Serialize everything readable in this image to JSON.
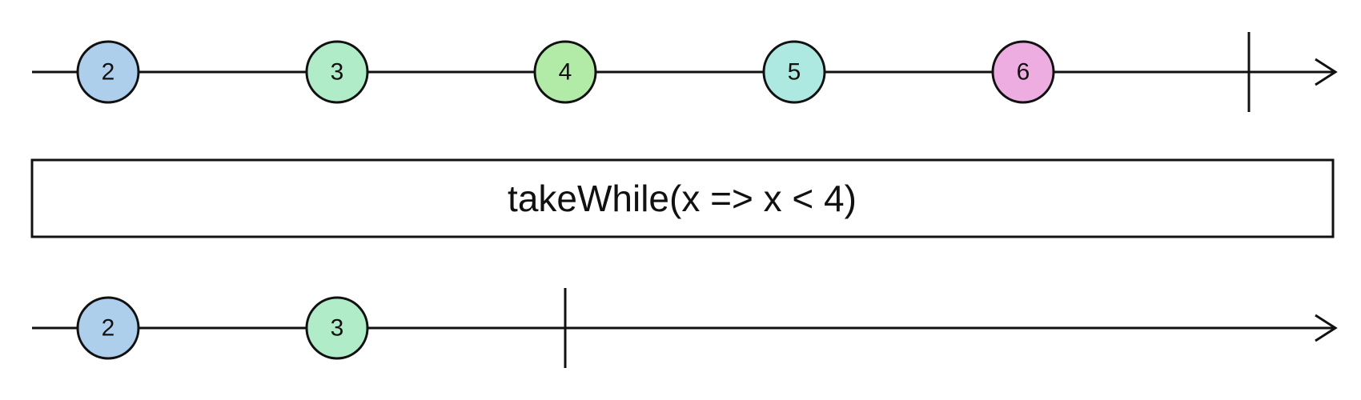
{
  "operator": {
    "label": "takeWhile(x => x < 4)"
  },
  "source": {
    "marbles": [
      {
        "value": "2",
        "color": "#aecfec"
      },
      {
        "value": "3",
        "color": "#b0ecc8"
      },
      {
        "value": "4",
        "color": "#b2eaa8"
      },
      {
        "value": "5",
        "color": "#ade9e0"
      },
      {
        "value": "6",
        "color": "#eeade0"
      }
    ],
    "completes": true
  },
  "result": {
    "marbles": [
      {
        "value": "2",
        "color": "#aecfec"
      },
      {
        "value": "3",
        "color": "#b0ecc8"
      }
    ],
    "completes": true
  },
  "colors": {
    "stroke": "#111111",
    "background": "#ffffff"
  }
}
